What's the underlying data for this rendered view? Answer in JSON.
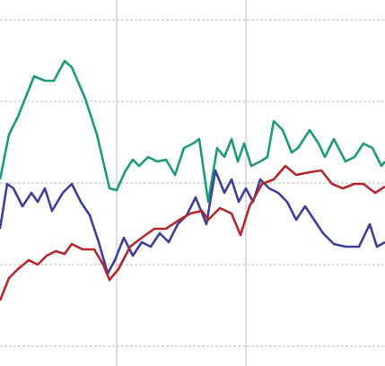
{
  "chart_data": {
    "type": "line",
    "xlim": [
      0,
      429
    ],
    "xticks": [
      130,
      274
    ],
    "ylim": [
      -22,
      386
    ],
    "yticks": [
      0,
      91,
      182,
      273,
      364
    ],
    "grid": true,
    "series": [
      {
        "color": "#1b9a7c",
        "x": [
          0,
          10,
          20,
          38,
          50,
          60,
          72,
          80,
          95,
          108,
          122,
          130,
          140,
          148,
          155,
          165,
          175,
          185,
          195,
          205,
          215,
          222,
          232,
          242,
          250,
          258,
          265,
          272,
          280,
          290,
          298,
          305,
          315,
          325,
          332,
          345,
          355,
          362,
          372,
          385,
          395,
          405,
          415,
          425,
          429
        ],
        "values": [
          186,
          236,
          256,
          301,
          296,
          296,
          318,
          311,
          276,
          236,
          176,
          174,
          196,
          208,
          201,
          211,
          206,
          208,
          191,
          221,
          226,
          231,
          161,
          221,
          211,
          231,
          206,
          226,
          201,
          206,
          211,
          251,
          241,
          216,
          221,
          241,
          226,
          211,
          231,
          206,
          211,
          226,
          221,
          201,
          206
        ]
      },
      {
        "color": "#3d3f98",
        "x": [
          0,
          8,
          15,
          25,
          35,
          42,
          50,
          58,
          70,
          80,
          90,
          100,
          110,
          120,
          128,
          138,
          148,
          158,
          168,
          178,
          188,
          198,
          208,
          218,
          230,
          240,
          250,
          258,
          266,
          274,
          282,
          290,
          300,
          310,
          320,
          330,
          340,
          350,
          360,
          372,
          385,
          400,
          412,
          420,
          429
        ],
        "values": [
          131,
          181,
          176,
          156,
          171,
          161,
          176,
          151,
          171,
          181,
          161,
          146,
          116,
          81,
          96,
          121,
          101,
          116,
          111,
          126,
          116,
          136,
          146,
          166,
          136,
          196,
          171,
          186,
          161,
          176,
          161,
          186,
          176,
          171,
          161,
          141,
          156,
          141,
          126,
          114,
          111,
          111,
          136,
          111,
          116
        ]
      },
      {
        "color": "#b3262c",
        "x": [
          0,
          10,
          20,
          32,
          42,
          52,
          62,
          72,
          80,
          92,
          105,
          115,
          122,
          132,
          145,
          158,
          172,
          185,
          200,
          212,
          225,
          232,
          245,
          258,
          268,
          278,
          292,
          305,
          318,
          330,
          345,
          358,
          370,
          382,
          395,
          405,
          418,
          429
        ],
        "values": [
          51,
          76,
          86,
          96,
          91,
          101,
          106,
          103,
          114,
          108,
          108,
          91,
          74,
          86,
          111,
          121,
          131,
          131,
          141,
          148,
          151,
          141,
          154,
          148,
          124,
          156,
          181,
          186,
          201,
          191,
          194,
          196,
          181,
          176,
          181,
          181,
          171,
          178
        ]
      }
    ]
  }
}
